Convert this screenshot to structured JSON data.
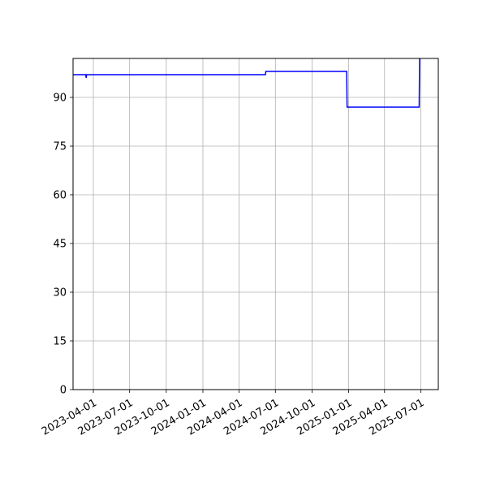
{
  "chart_data": {
    "type": "line",
    "title": "",
    "xlabel": "",
    "ylabel": "",
    "grid": true,
    "line_color": "#0000ff",
    "x_tick_labels": [
      "2023-04-01",
      "2023-07-01",
      "2023-10-01",
      "2024-01-01",
      "2024-04-01",
      "2024-07-01",
      "2024-10-01",
      "2025-01-01",
      "2025-04-01",
      "2025-07-01"
    ],
    "y_ticks": [
      0,
      15,
      30,
      45,
      60,
      75,
      90
    ],
    "xlim": [
      "2023-02-09",
      "2025-08-14"
    ],
    "ylim": [
      0,
      102
    ],
    "series": [
      {
        "x": [
          "2023-02-09",
          "2023-03-13",
          "2023-03-14",
          "2023-03-15",
          "2024-06-06",
          "2024-06-07",
          "2024-12-27",
          "2024-12-28",
          "2025-06-27",
          "2025-06-28"
        ],
        "y": [
          97,
          97,
          96,
          97,
          97,
          98,
          98,
          87,
          87,
          102
        ]
      }
    ]
  }
}
